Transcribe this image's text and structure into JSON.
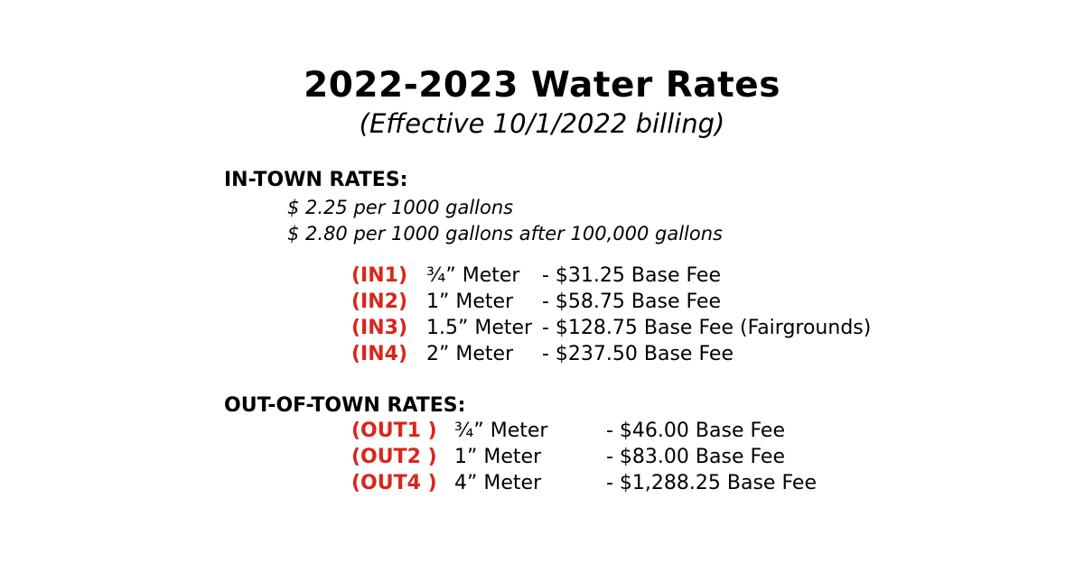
{
  "colors": {
    "code": "#d9261c",
    "text": "#000000",
    "background": "#ffffff"
  },
  "title": "2022-2023 Water Rates",
  "subtitle": "(Effective 10/1/2022 billing)",
  "in_town": {
    "heading": "IN-TOWN RATES:",
    "usage": [
      "$ 2.25 per 1000 gallons",
      "$ 2.80 per 1000 gallons after 100,000 gallons"
    ],
    "rows": [
      {
        "code": "(IN1)",
        "meter": "¾” Meter",
        "fee": "- $31.25 Base Fee"
      },
      {
        "code": "(IN2)",
        "meter": "1” Meter",
        "fee": "- $58.75 Base Fee"
      },
      {
        "code": "(IN3)",
        "meter": "1.5” Meter",
        "fee": "- $128.75 Base Fee (Fairgrounds)"
      },
      {
        "code": "(IN4)",
        "meter": "2” Meter",
        "fee": "- $237.50 Base Fee"
      }
    ]
  },
  "out_of_town": {
    "heading": "OUT-OF-TOWN RATES:",
    "rows": [
      {
        "code": "(OUT1 )",
        "meter": "¾” Meter",
        "fee": "- $46.00 Base Fee"
      },
      {
        "code": "(OUT2 )",
        "meter": "1” Meter",
        "fee": "- $83.00 Base Fee"
      },
      {
        "code": "(OUT4 )",
        "meter": "4” Meter",
        "fee": "- $1,288.25 Base Fee"
      }
    ]
  }
}
